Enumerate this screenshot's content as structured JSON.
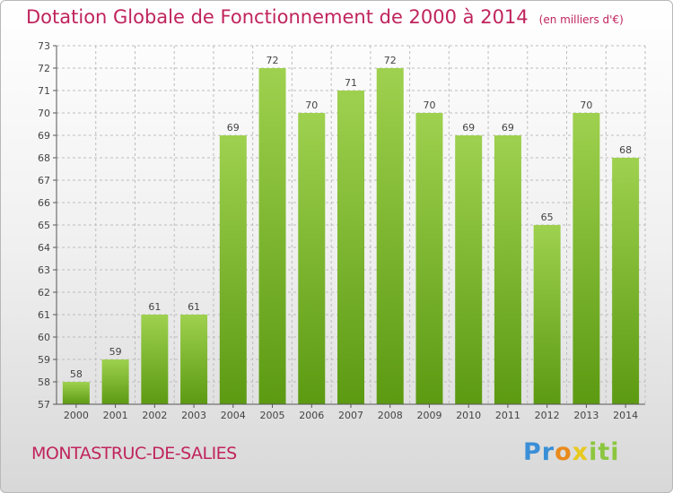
{
  "header": {
    "title": "Dotation Globale de Fonctionnement de 2000 à 2014",
    "unit": "(en milliers d'€)"
  },
  "footer": {
    "commune": "MONTASTRUC-DE-SALIES",
    "logo": "Proxiti"
  },
  "colors": {
    "title": "#c0245c",
    "bar_top": "#9ed14f",
    "bar_bottom": "#5c9a12",
    "grid": "#bdbdbd"
  },
  "chart_data": {
    "type": "bar",
    "title": "Dotation Globale de Fonctionnement de 2000 à 2014",
    "subtitle": "(en milliers d'€)",
    "xlabel": "",
    "ylabel": "",
    "categories": [
      "2000",
      "2001",
      "2002",
      "2003",
      "2004",
      "2005",
      "2006",
      "2007",
      "2008",
      "2009",
      "2010",
      "2011",
      "2012",
      "2013",
      "2014"
    ],
    "values": [
      58,
      59,
      61,
      61,
      69,
      72,
      70,
      71,
      72,
      70,
      69,
      69,
      65,
      70,
      68
    ],
    "ylim": [
      57,
      73
    ],
    "yticks": [
      57,
      58,
      59,
      60,
      61,
      62,
      63,
      64,
      65,
      66,
      67,
      68,
      69,
      70,
      71,
      72,
      73
    ],
    "grid": true,
    "data_labels": true
  }
}
